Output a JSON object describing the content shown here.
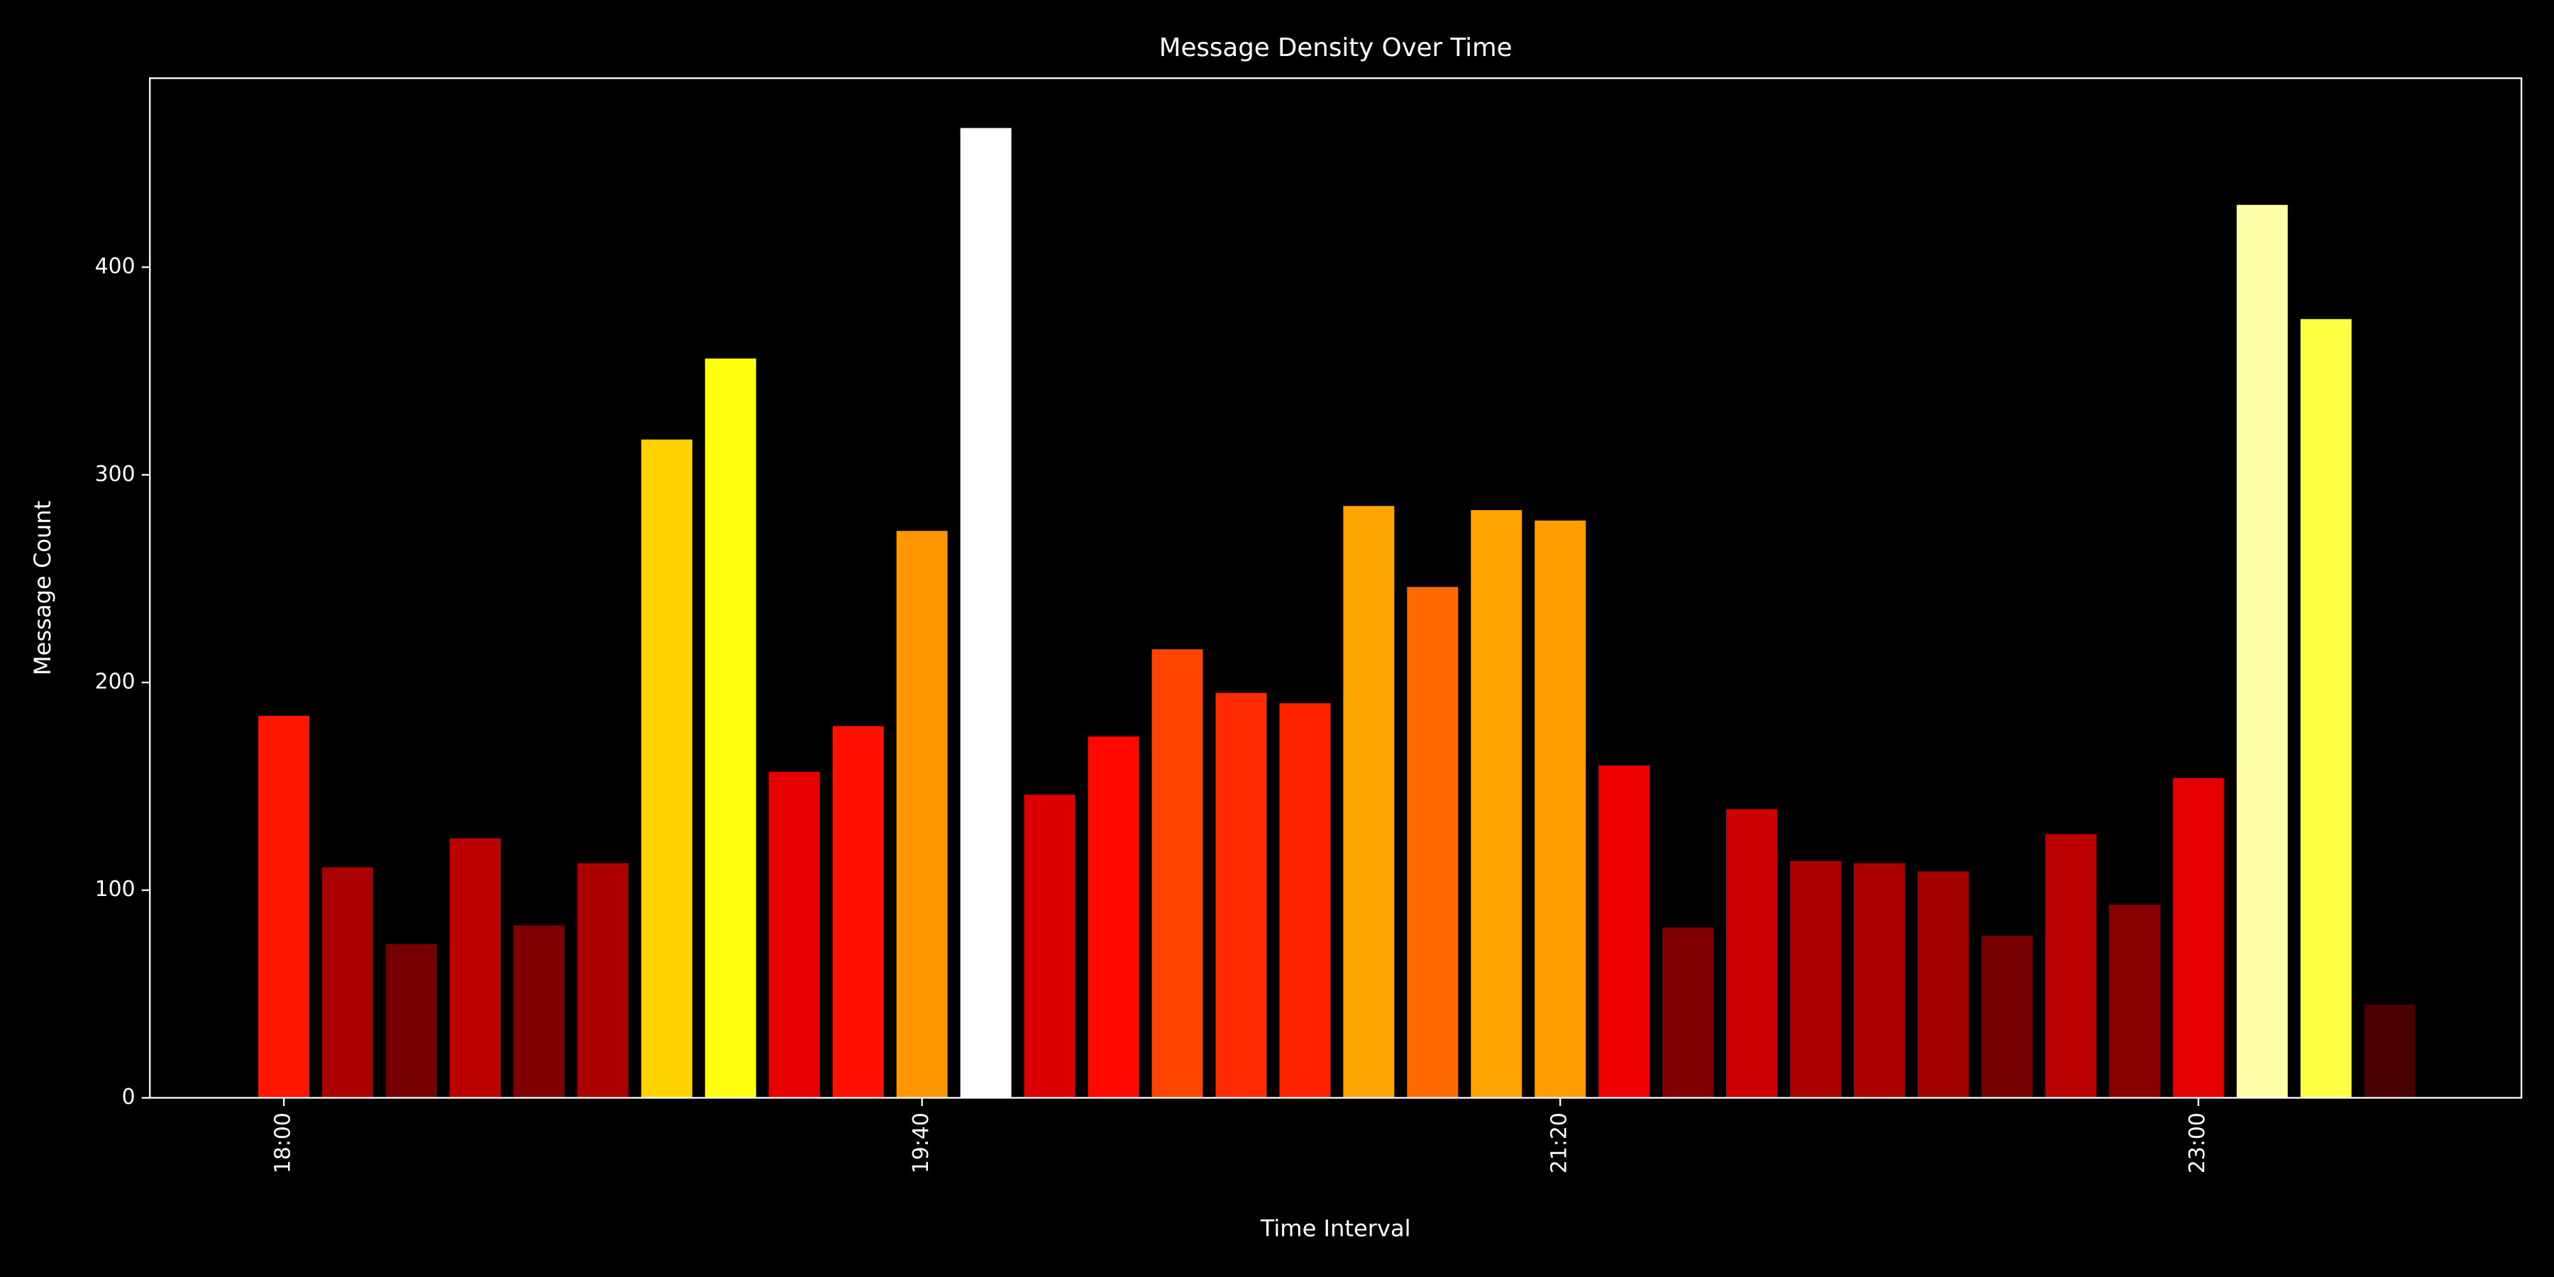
{
  "chart_data": {
    "type": "bar",
    "title": "Message Density Over Time",
    "x_label": "Time Interval",
    "y_label": "Message Count",
    "categories": [
      "18:00",
      null,
      null,
      null,
      null,
      null,
      null,
      null,
      null,
      null,
      "19:40",
      null,
      null,
      null,
      null,
      null,
      null,
      null,
      null,
      null,
      "21:20",
      null,
      null,
      null,
      null,
      null,
      null,
      null,
      null,
      null,
      "23:00",
      null,
      null,
      null
    ],
    "values": [
      184,
      111,
      74,
      125,
      83,
      113,
      317,
      356,
      157,
      179,
      273,
      467,
      146,
      174,
      216,
      195,
      190,
      285,
      246,
      283,
      278,
      160,
      82,
      139,
      114,
      113,
      109,
      78,
      127,
      93,
      154,
      430,
      375,
      45
    ],
    "colors": [
      "#ff1500",
      "#aa0000",
      "#760000",
      "#bb0000",
      "#800000",
      "#aa0000",
      "#ffd200",
      "#ffff10",
      "#e60000",
      "#ff1100",
      "#ff9600",
      "#ffffff",
      "#dd0000",
      "#ff0800",
      "#ff4400",
      "#ff2a00",
      "#ff2200",
      "#ffa500",
      "#ff6a00",
      "#ffa300",
      "#ff9c00",
      "#ee0000",
      "#800000",
      "#cc0000",
      "#aa0000",
      "#aa0000",
      "#a50000",
      "#770000",
      "#bb0000",
      "#8a0000",
      "#e60000",
      "#ffffa8",
      "#ffff44",
      "#4a0000"
    ],
    "ylim": [
      0,
      491
    ],
    "yticks": [
      0,
      100,
      200,
      300,
      400
    ],
    "grid": false
  }
}
